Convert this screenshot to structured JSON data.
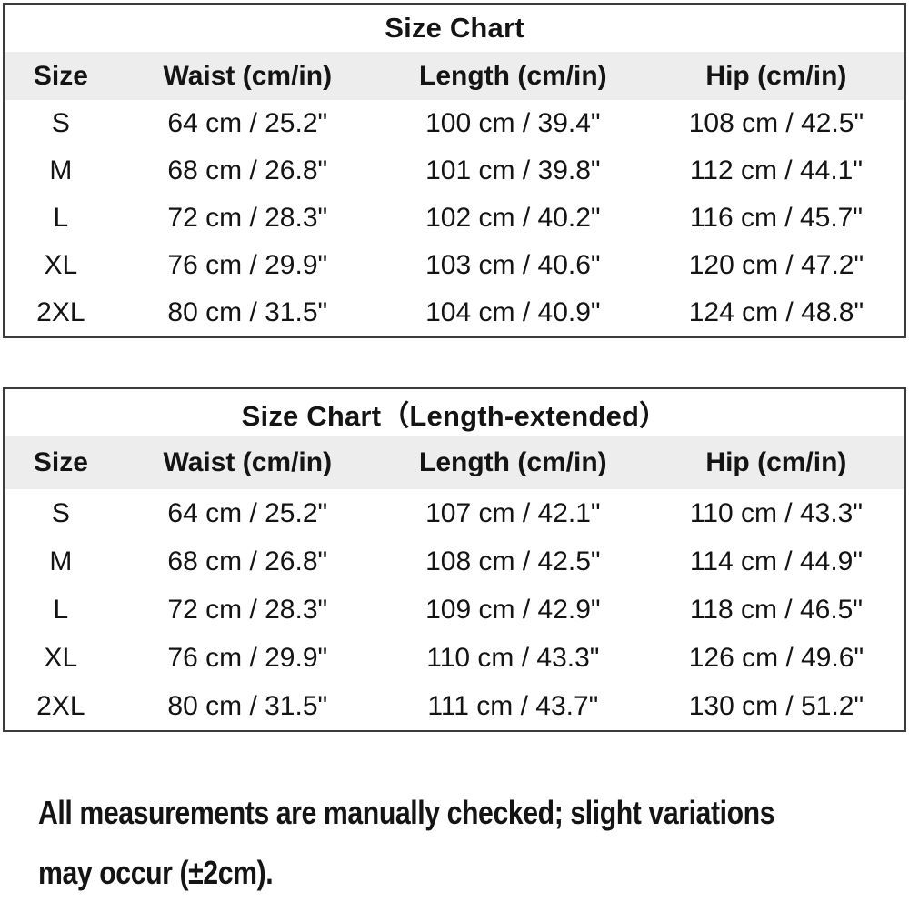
{
  "colors": {
    "page_bg": "#ffffff",
    "text_color": "#141414",
    "border_color": "#3c3c3c",
    "header_bg": "#ededed"
  },
  "chart_data": [
    {
      "type": "table",
      "title": "Size Chart",
      "columns": [
        "Size",
        "Waist (cm/in)",
        "Length (cm/in)",
        "Hip (cm/in)"
      ],
      "rows": [
        [
          "S",
          "64 cm / 25.2\"",
          "100 cm / 39.4\"",
          "108 cm / 42.5\""
        ],
        [
          "M",
          "68 cm / 26.8\"",
          "101 cm / 39.8\"",
          "112 cm / 44.1\""
        ],
        [
          "L",
          "72 cm / 28.3\"",
          "102 cm / 40.2\"",
          "116 cm / 45.7\""
        ],
        [
          "XL",
          "76 cm / 29.9\"",
          "103 cm / 40.6\"",
          "120 cm / 47.2\""
        ],
        [
          "2XL",
          "80 cm / 31.5\"",
          "104 cm / 40.9\"",
          "124 cm / 48.8\""
        ]
      ]
    },
    {
      "type": "table",
      "title": "Size Chart（Length-extended）",
      "columns": [
        "Size",
        "Waist (cm/in)",
        "Length (cm/in)",
        "Hip (cm/in)"
      ],
      "rows": [
        [
          "S",
          "64 cm / 25.2\"",
          "107 cm / 42.1\"",
          "110 cm / 43.3\""
        ],
        [
          "M",
          "68 cm / 26.8\"",
          "108 cm / 42.5\"",
          "114 cm / 44.9\""
        ],
        [
          "L",
          "72 cm / 28.3\"",
          "109 cm / 42.9\"",
          "118 cm / 46.5\""
        ],
        [
          "XL",
          "76 cm / 29.9\"",
          "110 cm / 43.3\"",
          "126 cm / 49.6\""
        ],
        [
          "2XL",
          "80 cm / 31.5\"",
          "111 cm / 43.7\"",
          "130 cm / 51.2\""
        ]
      ]
    }
  ],
  "note": {
    "line1": "All measurements are manually checked; slight variations",
    "line2": "may occur (±2cm)."
  }
}
